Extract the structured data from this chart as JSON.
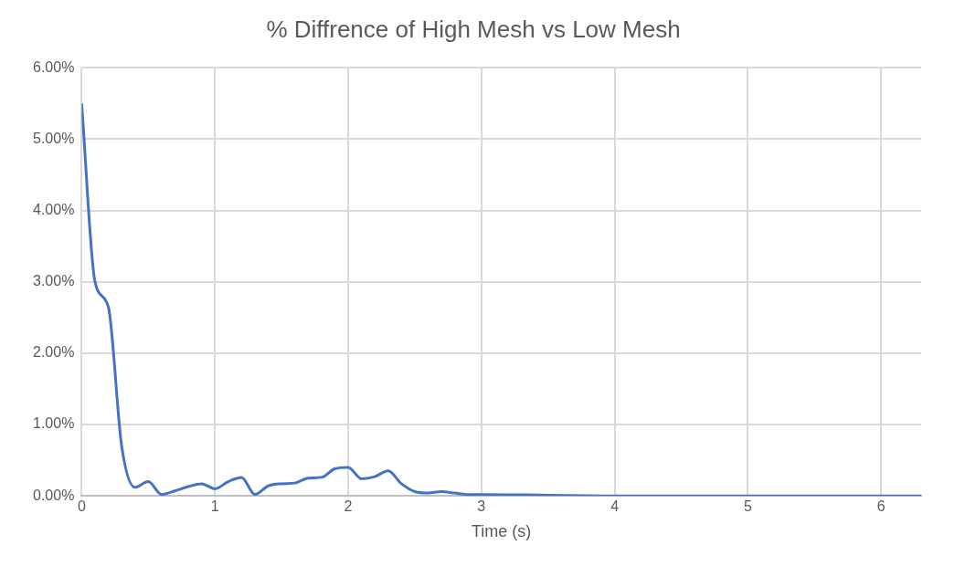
{
  "chart_data": {
    "type": "line",
    "title": "% Diffrence of High Mesh vs Low Mesh",
    "xlabel": "Time (s)",
    "series": [
      {
        "color": "#4472c4",
        "x": [
          0,
          0.1,
          0.2,
          0.3,
          0.4,
          0.5,
          0.6,
          0.7,
          0.8,
          0.9,
          1.0,
          1.1,
          1.2,
          1.3,
          1.4,
          1.5,
          1.6,
          1.7,
          1.8,
          1.9,
          2.0,
          2.1,
          2.2,
          2.3,
          2.4,
          2.5,
          2.6,
          2.7,
          2.8,
          2.9,
          3.0,
          3.5,
          4.0,
          5.0,
          6.3
        ],
        "values": [
          5.5,
          3.0,
          2.65,
          0.7,
          0.12,
          0.2,
          0.02,
          0.07,
          0.13,
          0.17,
          0.1,
          0.2,
          0.26,
          0.02,
          0.14,
          0.17,
          0.18,
          0.25,
          0.26,
          0.38,
          0.4,
          0.24,
          0.27,
          0.35,
          0.17,
          0.06,
          0.04,
          0.06,
          0.04,
          0.02,
          0.02,
          0.01,
          0,
          0,
          0
        ]
      }
    ],
    "xlim": [
      0,
      6.3
    ],
    "xticks": [
      0,
      1,
      2,
      3,
      4,
      5,
      6
    ],
    "ylim": [
      0,
      6
    ],
    "yticks": [
      {
        "value": 0,
        "label": "0.00%"
      },
      {
        "value": 1,
        "label": "1.00%"
      },
      {
        "value": 2,
        "label": "2.00%"
      },
      {
        "value": 3,
        "label": "3.00%"
      },
      {
        "value": 4,
        "label": "4.00%"
      },
      {
        "value": 5,
        "label": "5.00%"
      },
      {
        "value": 6,
        "label": "6.00%"
      }
    ],
    "grid": true,
    "legend": false,
    "marker": "none",
    "line_style": "solid"
  }
}
